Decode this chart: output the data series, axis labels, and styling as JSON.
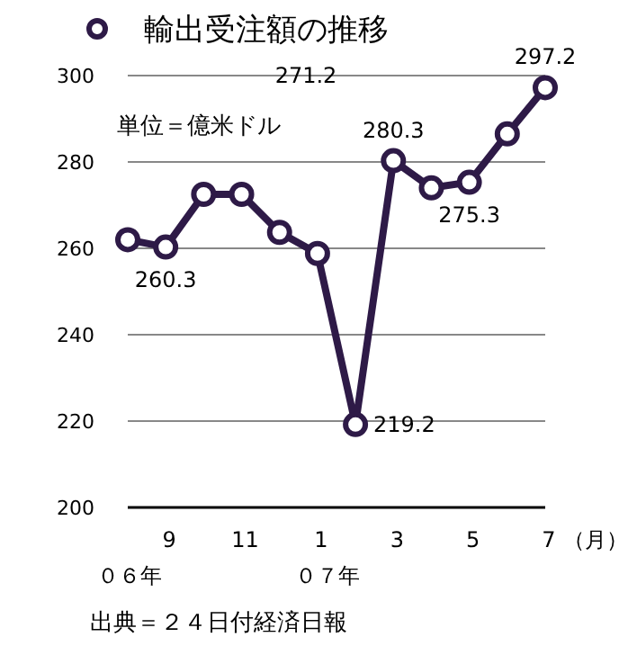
{
  "chart_data": {
    "type": "line",
    "title": "輸出受注額の推移",
    "xlabel": "（月）",
    "categories": [
      null,
      "9",
      null,
      "11",
      null,
      "1",
      null,
      "3",
      null,
      "5",
      null,
      "7"
    ],
    "series": [
      {
        "color": "#2e1a47",
        "values": [
          262,
          260.3,
          272.5,
          272.5,
          263.7,
          258.8,
          219.2,
          280.3,
          274,
          275.3,
          286.5,
          297.2
        ],
        "value_labels": [
          null,
          "260.3",
          null,
          null,
          null,
          null,
          "219.2",
          "280.3",
          null,
          "275.3",
          null,
          "297.2"
        ]
      }
    ],
    "ylim": [
      200,
      300
    ],
    "yticks": [
      200,
      220,
      240,
      260,
      280,
      300
    ],
    "grid": "y",
    "marker": "circle",
    "annotations": [
      "271.2",
      "単位＝億米ドル",
      "０６年",
      "０７年",
      "出典＝２４日付経済日報"
    ]
  }
}
